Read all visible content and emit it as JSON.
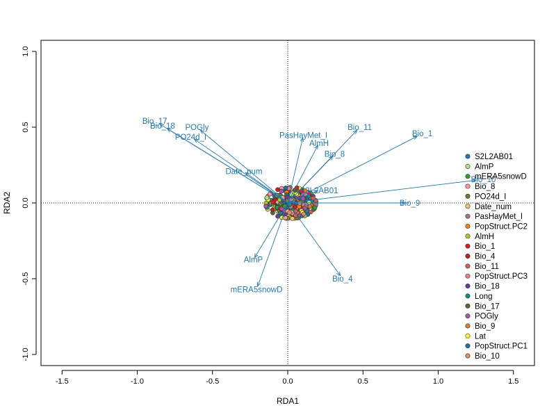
{
  "chart_data": {
    "type": "scatter",
    "title": "",
    "xlabel": "RDA1",
    "ylabel": "RDA2",
    "xlim": [
      -1.6,
      1.6
    ],
    "ylim": [
      -1.08,
      1.08
    ],
    "xticks": [
      -1.5,
      -1.0,
      -0.5,
      0.0,
      0.5,
      1.0,
      1.5
    ],
    "yticks": [
      -1.0,
      -0.5,
      0.0,
      0.5,
      1.0
    ],
    "x_tick_labels": [
      "-1.5",
      "-1.0",
      "-0.5",
      "0.0",
      "0.5",
      "1.0",
      "1.5"
    ],
    "y_tick_labels": [
      "-1.0",
      "-0.5",
      "0.0",
      "0.5",
      "1.0"
    ],
    "reference_lines": {
      "x": 0,
      "y": 0,
      "style": "dotted"
    },
    "arrow_color": "#1f78b4",
    "biplot_arrows": [
      {
        "label": "Bio_17",
        "x": -0.85,
        "y": 0.52
      },
      {
        "label": "Bio_18",
        "x": -0.8,
        "y": 0.49
      },
      {
        "label": "POGly",
        "x": -0.58,
        "y": 0.48
      },
      {
        "label": "PO24d_I",
        "x": -0.62,
        "y": 0.42
      },
      {
        "label": "Date_num",
        "x": -0.28,
        "y": 0.2
      },
      {
        "label": "PasHayMet_I",
        "x": 0.1,
        "y": 0.43
      },
      {
        "label": "AlmH",
        "x": 0.2,
        "y": 0.38
      },
      {
        "label": "Bio_11",
        "x": 0.46,
        "y": 0.48
      },
      {
        "label": "Bio_8",
        "x": 0.3,
        "y": 0.31
      },
      {
        "label": "Bio_1",
        "x": 0.86,
        "y": 0.44
      },
      {
        "label": "Bio_10",
        "x": 1.25,
        "y": 0.15
      },
      {
        "label": "S2L2AB01",
        "x": 0.2,
        "y": 0.08
      },
      {
        "label": "Bio_9",
        "x": 0.78,
        "y": 0.0
      },
      {
        "label": "AlmP",
        "x": -0.22,
        "y": -0.36
      },
      {
        "label": "mERA5snowD",
        "x": -0.2,
        "y": -0.55
      },
      {
        "label": "Bio_4",
        "x": 0.35,
        "y": -0.48
      }
    ],
    "legend": {
      "placement": "right",
      "entries": [
        {
          "label": "S2L2AB01",
          "color": "#1f78b4"
        },
        {
          "label": "AlmP",
          "color": "#b2df8a"
        },
        {
          "label": "mERA5snowD",
          "color": "#33a02c"
        },
        {
          "label": "Bio_8",
          "color": "#fb9a99"
        },
        {
          "label": "PO24d_I",
          "color": "#6a7a2a"
        },
        {
          "label": "Date_num",
          "color": "#fdbf6f"
        },
        {
          "label": "PasHayMet_I",
          "color": "#b07090"
        },
        {
          "label": "PopStruct.PC2",
          "color": "#ff7f00"
        },
        {
          "label": "AlmH",
          "color": "#a0d020"
        },
        {
          "label": "Bio_1",
          "color": "#e31a1c"
        },
        {
          "label": "Bio_4",
          "color": "#c02020"
        },
        {
          "label": "Bio_11",
          "color": "#d06060"
        },
        {
          "label": "PopStruct.PC3",
          "color": "#f08080"
        },
        {
          "label": "Bio_18",
          "color": "#6a3d9a"
        },
        {
          "label": "Long",
          "color": "#1a8a8a"
        },
        {
          "label": "Bio_17",
          "color": "#556b2f"
        },
        {
          "label": "POGly",
          "color": "#b050b0"
        },
        {
          "label": "Bio_9",
          "color": "#d08030"
        },
        {
          "label": "Lat",
          "color": "#ffff33"
        },
        {
          "label": "PopStruct.PC1",
          "color": "#2070b0"
        },
        {
          "label": "Bio_10",
          "color": "#e09070"
        }
      ]
    },
    "sample_cloud": {
      "center": [
        0.02,
        0.0
      ],
      "spread_x": 0.09,
      "spread_y": 0.055,
      "point_count": 420
    }
  }
}
